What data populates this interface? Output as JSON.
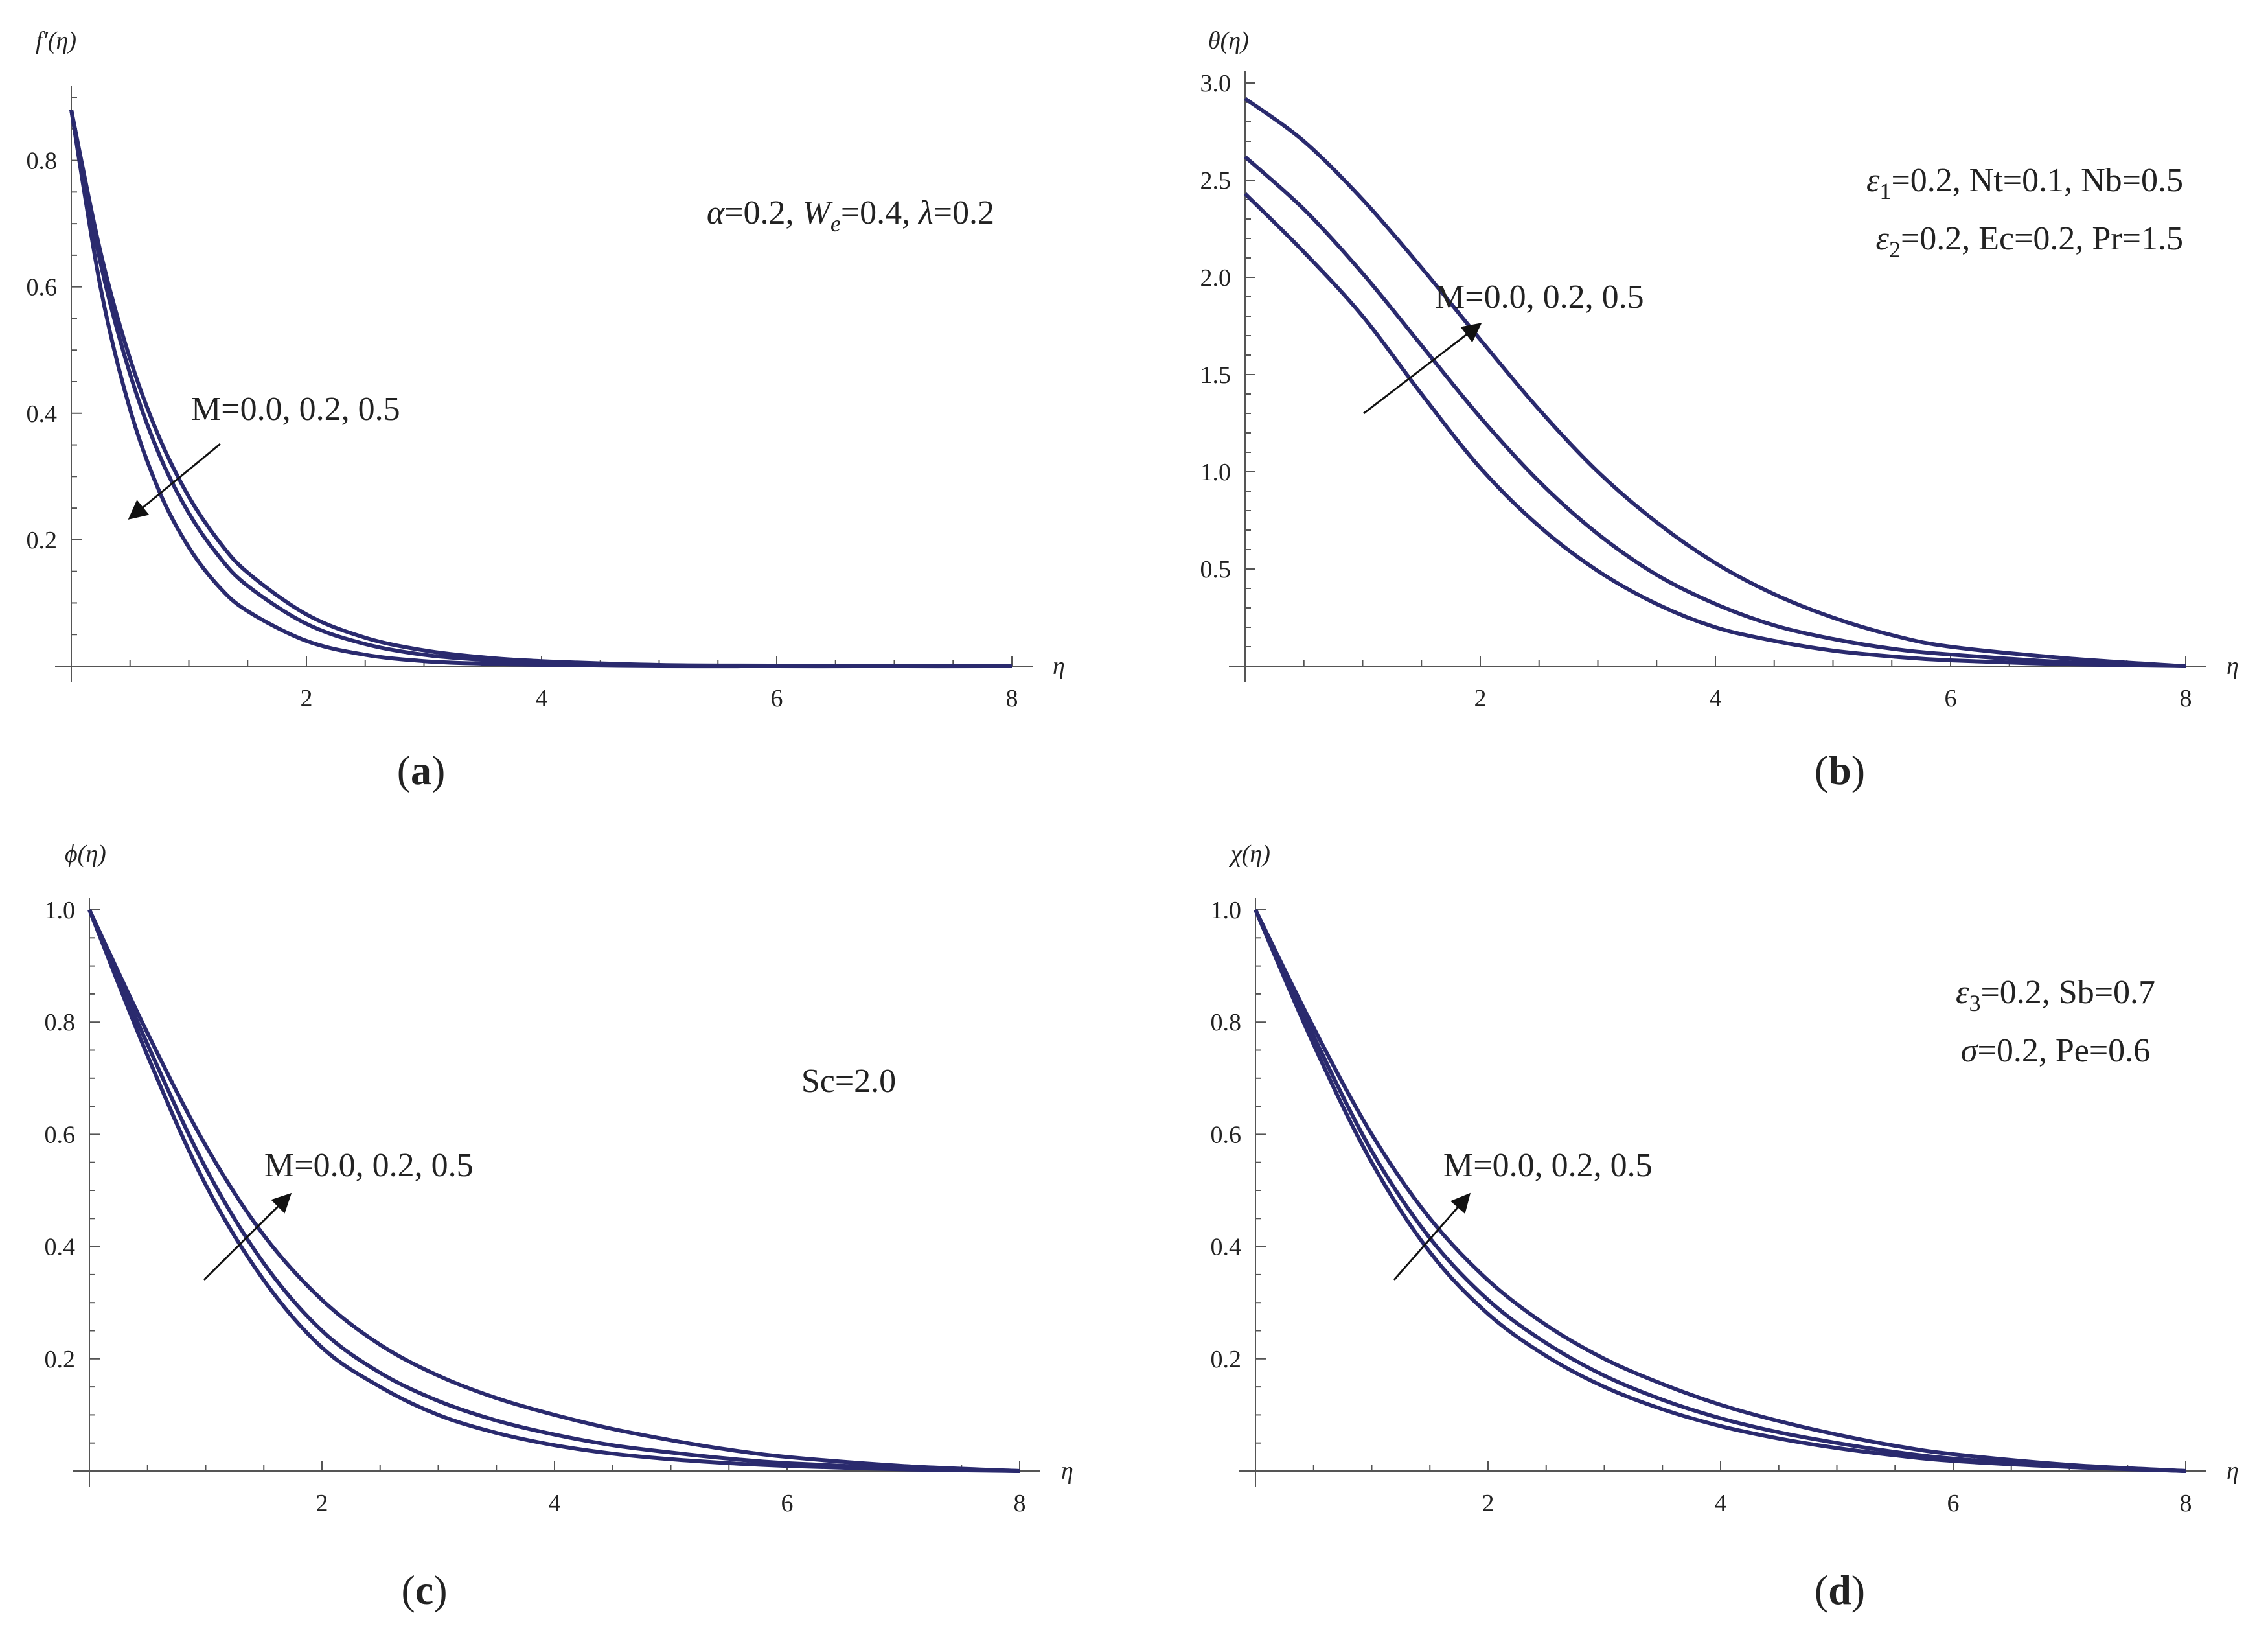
{
  "colors": {
    "curve": "#2a2a6e",
    "axis": "#555555",
    "text": "#222222"
  },
  "chart_data": [
    {
      "type": "line",
      "panel": "a",
      "caption": "(a)",
      "caption_letter": "a",
      "ylabel": "f′(η)",
      "xlabel": "η",
      "xlim": [
        0,
        8
      ],
      "ylim": [
        0,
        0.9
      ],
      "xticks": [
        2,
        4,
        6,
        8
      ],
      "yticks": [
        0.2,
        0.4,
        0.6,
        0.8
      ],
      "params_lines": [
        "α=0.2, W_e=0.4, λ=0.2"
      ],
      "arrow_label": "M=0.0, 0.2, 0.5",
      "arrow_direction": "decreasing",
      "x": [
        0,
        0.25,
        0.5,
        0.75,
        1,
        1.25,
        1.5,
        2,
        2.5,
        3,
        3.5,
        4,
        5,
        6,
        7,
        8
      ],
      "series": [
        {
          "name": "M=0.0",
          "values": [
            0.88,
            0.654,
            0.486,
            0.361,
            0.268,
            0.199,
            0.148,
            0.082,
            0.045,
            0.025,
            0.014,
            0.008,
            0.002,
            0.001,
            0.0,
            0.0
          ]
        },
        {
          "name": "M=0.2",
          "values": [
            0.88,
            0.637,
            0.462,
            0.334,
            0.242,
            0.175,
            0.127,
            0.067,
            0.035,
            0.018,
            0.01,
            0.005,
            0.001,
            0.0,
            0.0,
            0.0
          ]
        },
        {
          "name": "M=0.5",
          "values": [
            0.88,
            0.598,
            0.406,
            0.276,
            0.188,
            0.127,
            0.087,
            0.04,
            0.018,
            0.008,
            0.004,
            0.002,
            0.0,
            0.0,
            0.0,
            0.0
          ]
        }
      ]
    },
    {
      "type": "line",
      "panel": "b",
      "caption": "(b)",
      "caption_letter": "b",
      "ylabel": "θ(η)",
      "xlabel": "η",
      "xlim": [
        0,
        8
      ],
      "ylim": [
        0,
        3.0
      ],
      "xticks": [
        2,
        4,
        6,
        8
      ],
      "yticks": [
        0.5,
        1.0,
        1.5,
        2.0,
        2.5,
        3.0
      ],
      "params_lines": [
        "ε1=0.2, Nt=0.1, Nb=0.5",
        "ε2=0.2, Ec=0.2, Pr=1.5"
      ],
      "arrow_label": "M=0.0, 0.2, 0.5",
      "arrow_direction": "increasing",
      "x": [
        0,
        0.5,
        1,
        1.5,
        2,
        2.5,
        3,
        3.5,
        4,
        4.5,
        5,
        5.5,
        6,
        7,
        8
      ],
      "series": [
        {
          "name": "M=0.0",
          "values": [
            2.43,
            2.13,
            1.8,
            1.4,
            1.02,
            0.72,
            0.49,
            0.32,
            0.2,
            0.13,
            0.08,
            0.05,
            0.03,
            0.01,
            0.0
          ]
        },
        {
          "name": "M=0.2",
          "values": [
            2.62,
            2.35,
            2.02,
            1.65,
            1.28,
            0.95,
            0.68,
            0.47,
            0.32,
            0.21,
            0.14,
            0.09,
            0.06,
            0.02,
            0.0
          ]
        },
        {
          "name": "M=0.5",
          "values": [
            2.92,
            2.7,
            2.4,
            2.05,
            1.68,
            1.32,
            1.0,
            0.74,
            0.53,
            0.37,
            0.25,
            0.16,
            0.1,
            0.04,
            0.0
          ]
        }
      ]
    },
    {
      "type": "line",
      "panel": "c",
      "caption": "(c)",
      "caption_letter": "c",
      "ylabel": "ϕ(η)",
      "xlabel": "η",
      "xlim": [
        0,
        8
      ],
      "ylim": [
        0,
        1.0
      ],
      "xticks": [
        2,
        4,
        6,
        8
      ],
      "yticks": [
        0.2,
        0.4,
        0.6,
        0.8,
        1.0
      ],
      "params_lines": [
        "Sc=2.0"
      ],
      "arrow_label": "M=0.0, 0.2, 0.5",
      "arrow_direction": "increasing",
      "x": [
        0,
        0.5,
        1,
        1.5,
        2,
        2.5,
        3,
        3.5,
        4,
        4.5,
        5,
        5.5,
        6,
        7,
        8
      ],
      "series": [
        {
          "name": "M=0.0",
          "values": [
            1.0,
            0.74,
            0.51,
            0.34,
            0.22,
            0.15,
            0.1,
            0.068,
            0.046,
            0.031,
            0.021,
            0.014,
            0.009,
            0.003,
            0.0
          ]
        },
        {
          "name": "M=0.2",
          "values": [
            1.0,
            0.76,
            0.54,
            0.37,
            0.25,
            0.175,
            0.125,
            0.09,
            0.065,
            0.046,
            0.033,
            0.022,
            0.014,
            0.005,
            0.0
          ]
        },
        {
          "name": "M=0.5",
          "values": [
            1.0,
            0.78,
            0.58,
            0.42,
            0.305,
            0.225,
            0.17,
            0.13,
            0.1,
            0.075,
            0.055,
            0.038,
            0.025,
            0.009,
            0.0
          ]
        }
      ]
    },
    {
      "type": "line",
      "panel": "d",
      "caption": "(d)",
      "caption_letter": "d",
      "ylabel": "χ(η)",
      "xlabel": "η",
      "xlim": [
        0,
        8
      ],
      "ylim": [
        0,
        1.0
      ],
      "xticks": [
        2,
        4,
        6,
        8
      ],
      "yticks": [
        0.2,
        0.4,
        0.6,
        0.8,
        1.0
      ],
      "params_lines": [
        "ε3=0.2, Sb=0.7",
        "σ=0.2, Pe=0.6"
      ],
      "arrow_label": "M=0.0, 0.2, 0.5",
      "arrow_direction": "increasing",
      "x": [
        0,
        0.5,
        1,
        1.5,
        2,
        2.5,
        3,
        3.5,
        4,
        4.5,
        5,
        5.5,
        6,
        7,
        8
      ],
      "series": [
        {
          "name": "M=0.0",
          "values": [
            1.0,
            0.76,
            0.55,
            0.39,
            0.28,
            0.205,
            0.15,
            0.11,
            0.08,
            0.058,
            0.041,
            0.028,
            0.018,
            0.007,
            0.0
          ]
        },
        {
          "name": "M=0.2",
          "values": [
            1.0,
            0.775,
            0.57,
            0.415,
            0.305,
            0.228,
            0.17,
            0.127,
            0.094,
            0.069,
            0.05,
            0.034,
            0.022,
            0.008,
            0.0
          ]
        },
        {
          "name": "M=0.5",
          "values": [
            1.0,
            0.79,
            0.6,
            0.45,
            0.34,
            0.26,
            0.2,
            0.155,
            0.118,
            0.089,
            0.065,
            0.045,
            0.03,
            0.011,
            0.0
          ]
        }
      ]
    }
  ]
}
